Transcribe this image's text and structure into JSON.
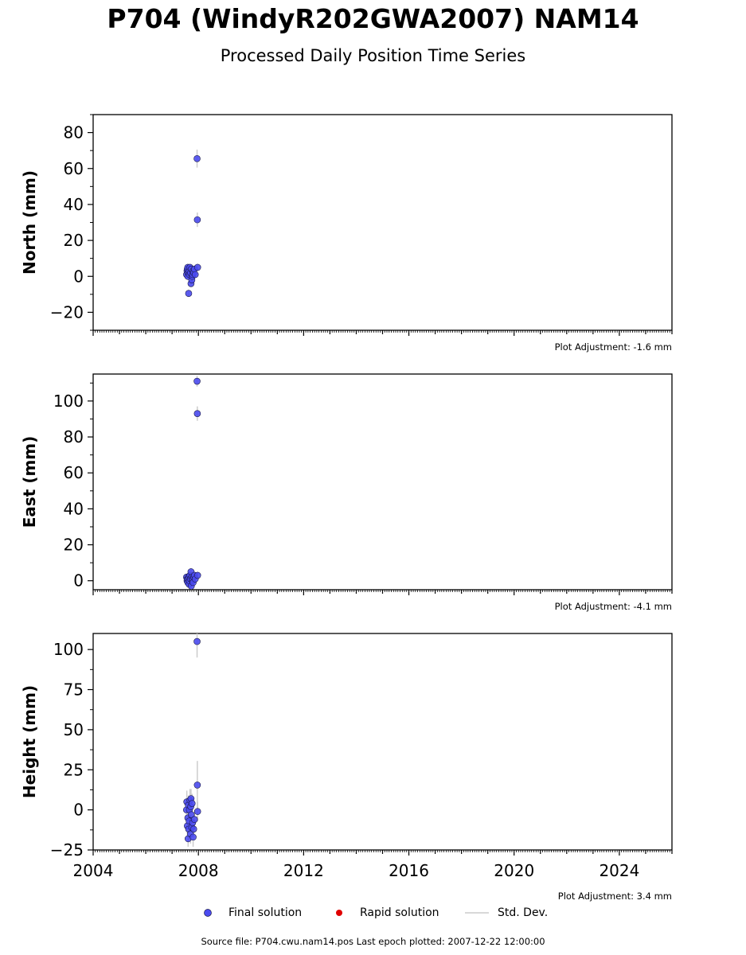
{
  "title": "P704 (WindyR202GWA2007) NAM14",
  "subtitle": "Processed Daily Position Time Series",
  "source_note": "Source file: P704.cwu.nam14.pos  Last epoch plotted: 2007-12-22 12:00:00",
  "legend": {
    "final": "Final solution",
    "rapid": "Rapid solution",
    "std": "Std. Dev."
  },
  "colors": {
    "final_fill": "#4b4bf0",
    "final_edge": "#1a1a4a",
    "rapid": "#e00000",
    "std": "#cccccc"
  },
  "chart_data": [
    {
      "type": "scatter",
      "ylabel": "North (mm)",
      "adjustment": "Plot Adjustment: -1.6 mm",
      "xlim": [
        2004,
        2026
      ],
      "ylim": [
        -30,
        90
      ],
      "yticks": [
        -20,
        0,
        20,
        40,
        60,
        80
      ],
      "series": [
        {
          "name": "Final solution",
          "x": [
            2007.55,
            2007.57,
            2007.58,
            2007.6,
            2007.6,
            2007.62,
            2007.63,
            2007.65,
            2007.66,
            2007.68,
            2007.7,
            2007.72,
            2007.73,
            2007.75,
            2007.77,
            2007.78,
            2007.8,
            2007.82,
            2007.85,
            2007.88,
            2007.95,
            2007.96,
            2007.97
          ],
          "y": [
            1,
            3,
            4,
            5,
            0,
            2,
            -9.5,
            3,
            1,
            5,
            2,
            -4,
            4,
            -2,
            0,
            1,
            3,
            2,
            4,
            1,
            65.5,
            31.5,
            5
          ],
          "err": [
            2,
            2,
            2,
            2,
            2,
            2,
            2,
            2,
            2,
            2,
            2,
            2,
            2,
            2,
            2,
            2,
            2,
            2,
            2,
            2,
            5,
            4,
            2
          ]
        }
      ]
    },
    {
      "type": "scatter",
      "ylabel": "East (mm)",
      "adjustment": "Plot Adjustment: -4.1 mm",
      "xlim": [
        2004,
        2026
      ],
      "ylim": [
        -5,
        115
      ],
      "yticks": [
        0,
        20,
        40,
        60,
        80,
        100
      ],
      "series": [
        {
          "name": "Final solution",
          "x": [
            2007.55,
            2007.57,
            2007.58,
            2007.6,
            2007.62,
            2007.63,
            2007.65,
            2007.66,
            2007.68,
            2007.7,
            2007.72,
            2007.73,
            2007.75,
            2007.77,
            2007.78,
            2007.8,
            2007.82,
            2007.85,
            2007.88,
            2007.95,
            2007.96,
            2007.97
          ],
          "y": [
            2,
            0,
            1,
            -1,
            2,
            1,
            -2,
            0,
            3,
            1,
            5,
            -3,
            2,
            0,
            1,
            -1,
            2,
            3,
            1,
            111,
            93,
            3
          ],
          "err": [
            2,
            2,
            2,
            2,
            2,
            2,
            2,
            2,
            2,
            2,
            2,
            2,
            2,
            2,
            2,
            2,
            2,
            2,
            2,
            3,
            4,
            2
          ]
        }
      ]
    },
    {
      "type": "scatter",
      "ylabel": "Height (mm)",
      "adjustment": "Plot Adjustment: 3.4 mm",
      "xlim": [
        2004,
        2026
      ],
      "ylim": [
        -25,
        110
      ],
      "yticks": [
        -25,
        0,
        25,
        50,
        75,
        100
      ],
      "xticks": [
        2004,
        2008,
        2012,
        2016,
        2020,
        2024
      ],
      "series": [
        {
          "name": "Final solution",
          "x": [
            2007.55,
            2007.56,
            2007.58,
            2007.6,
            2007.61,
            2007.62,
            2007.63,
            2007.65,
            2007.66,
            2007.68,
            2007.7,
            2007.71,
            2007.72,
            2007.73,
            2007.75,
            2007.76,
            2007.78,
            2007.8,
            2007.82,
            2007.85,
            2007.95,
            2007.96,
            2007.97
          ],
          "y": [
            0,
            5,
            -10,
            -5,
            -18,
            3,
            -12,
            -7,
            0,
            6,
            -15,
            2,
            7,
            -3,
            -11,
            4,
            -8,
            -17,
            -12,
            -6,
            105,
            15.5,
            -1
          ],
          "err": [
            6,
            7,
            6,
            6,
            5,
            6,
            6,
            7,
            6,
            7,
            6,
            6,
            6,
            6,
            6,
            6,
            6,
            6,
            6,
            6,
            10,
            15,
            6
          ]
        }
      ]
    }
  ]
}
